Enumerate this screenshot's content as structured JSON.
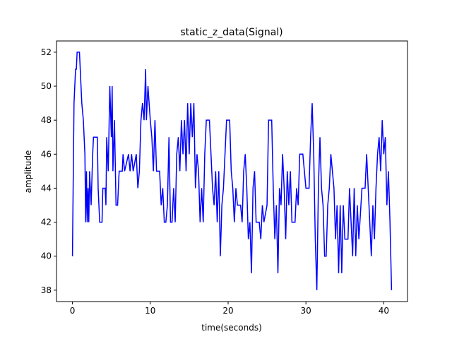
{
  "chart_data": {
    "type": "line",
    "title": "static_z_data(Signal)",
    "x_label": "time(seconds)",
    "y_label": "amplitude",
    "x": [
      0,
      0.2,
      0.3,
      0.4,
      0.5,
      0.6,
      0.9,
      1.0,
      1.2,
      1.4,
      1.6,
      1.7,
      1.8,
      1.9,
      2.0,
      2.1,
      2.2,
      2.4,
      2.6,
      2.7,
      3.2,
      3.3,
      3.5,
      3.8,
      3.9,
      4.2,
      4.3,
      4.4,
      4.6,
      4.8,
      5.0,
      5.1,
      5.2,
      5.4,
      5.6,
      5.8,
      6.0,
      6.4,
      6.5,
      6.7,
      7.2,
      7.4,
      7.6,
      7.8,
      8.2,
      8.4,
      8.6,
      8.8,
      9.0,
      9.2,
      9.4,
      9.5,
      9.7,
      10.0,
      10.2,
      10.4,
      10.6,
      10.8,
      11.2,
      11.4,
      11.6,
      11.8,
      12.0,
      12.2,
      12.4,
      12.6,
      12.8,
      13.0,
      13.2,
      13.4,
      13.6,
      13.8,
      14.0,
      14.2,
      14.4,
      14.6,
      14.8,
      15.0,
      15.2,
      15.4,
      15.6,
      15.8,
      16.0,
      16.2,
      16.4,
      16.6,
      16.8,
      17.0,
      17.2,
      17.6,
      17.8,
      18.0,
      18.2,
      18.4,
      18.6,
      18.8,
      19.0,
      19.2,
      19.4,
      19.6,
      19.8,
      20.2,
      20.4,
      20.6,
      20.8,
      21.0,
      21.2,
      21.6,
      21.8,
      22.0,
      22.2,
      22.4,
      22.6,
      22.8,
      23.0,
      23.2,
      23.4,
      23.6,
      24.0,
      24.2,
      24.4,
      24.6,
      25.0,
      25.2,
      25.6,
      25.8,
      26.0,
      26.2,
      26.4,
      26.6,
      26.8,
      27.0,
      27.2,
      27.4,
      27.6,
      27.8,
      28.0,
      28.2,
      28.6,
      28.8,
      29.0,
      29.2,
      29.6,
      29.8,
      30.0,
      30.4,
      30.6,
      30.8,
      31.0,
      31.2,
      31.4,
      31.6,
      31.8,
      32.0,
      32.2,
      32.4,
      32.6,
      32.8,
      33.0,
      33.2,
      33.4,
      33.6,
      33.8,
      34.0,
      34.2,
      34.4,
      34.6,
      34.8,
      35.0,
      35.4,
      35.6,
      35.8,
      36.0,
      36.2,
      36.4,
      36.6,
      36.8,
      37.2,
      37.6,
      37.8,
      38.0,
      38.2,
      38.4,
      38.6,
      38.8,
      39.0,
      39.2,
      39.4,
      39.6,
      39.8,
      40.0,
      40.2,
      40.4,
      40.6,
      40.8,
      41.0
    ],
    "series": [
      {
        "name": "static_z_data",
        "color": "#0000ff",
        "values": [
          40,
          49,
          50,
          51,
          51,
          52,
          52,
          51,
          49,
          48,
          46,
          42,
          45,
          42,
          44,
          42,
          45,
          43,
          46,
          47,
          47,
          44,
          42,
          42,
          44,
          44,
          43,
          47,
          45,
          50,
          47,
          50,
          45,
          48,
          43,
          43,
          45,
          45,
          46,
          45,
          46,
          45,
          46,
          45,
          46,
          44,
          45,
          48,
          49,
          48,
          51,
          48,
          50,
          48,
          47,
          45,
          48,
          45,
          45,
          43,
          44,
          42,
          42,
          43,
          47,
          42,
          42,
          44,
          42,
          46,
          47,
          45,
          48,
          46,
          48,
          45,
          49,
          46,
          49,
          47,
          49,
          44,
          46,
          45,
          42,
          44,
          42,
          46,
          48,
          48,
          46,
          44,
          43,
          45,
          42,
          45,
          40,
          43,
          44,
          46,
          48,
          48,
          45,
          44,
          42,
          44,
          43,
          43,
          42,
          45,
          46,
          44,
          41,
          42,
          39,
          44,
          45,
          42,
          42,
          41,
          43,
          42,
          43,
          48,
          48,
          44,
          41,
          43,
          39,
          44,
          43,
          46,
          44,
          41,
          45,
          43,
          45,
          42,
          42,
          44,
          43,
          46,
          46,
          45,
          44,
          44,
          47,
          49,
          46,
          41,
          38,
          44,
          47,
          44,
          43,
          40,
          40,
          43,
          44,
          46,
          45,
          44,
          41,
          43,
          39,
          43,
          39,
          43,
          41,
          41,
          44,
          42,
          40,
          44,
          40,
          43,
          41,
          44,
          44,
          46,
          44,
          42,
          40,
          43,
          41,
          44,
          46,
          47,
          45,
          48,
          46,
          47,
          43,
          45,
          42,
          38
        ]
      }
    ],
    "xlim": [
      -2.05,
      43.05
    ],
    "ylim": [
      37.33,
      52.66
    ],
    "xticks": [
      0,
      10,
      20,
      30,
      40
    ],
    "yticks": [
      38,
      40,
      42,
      44,
      46,
      48,
      50,
      52
    ]
  }
}
